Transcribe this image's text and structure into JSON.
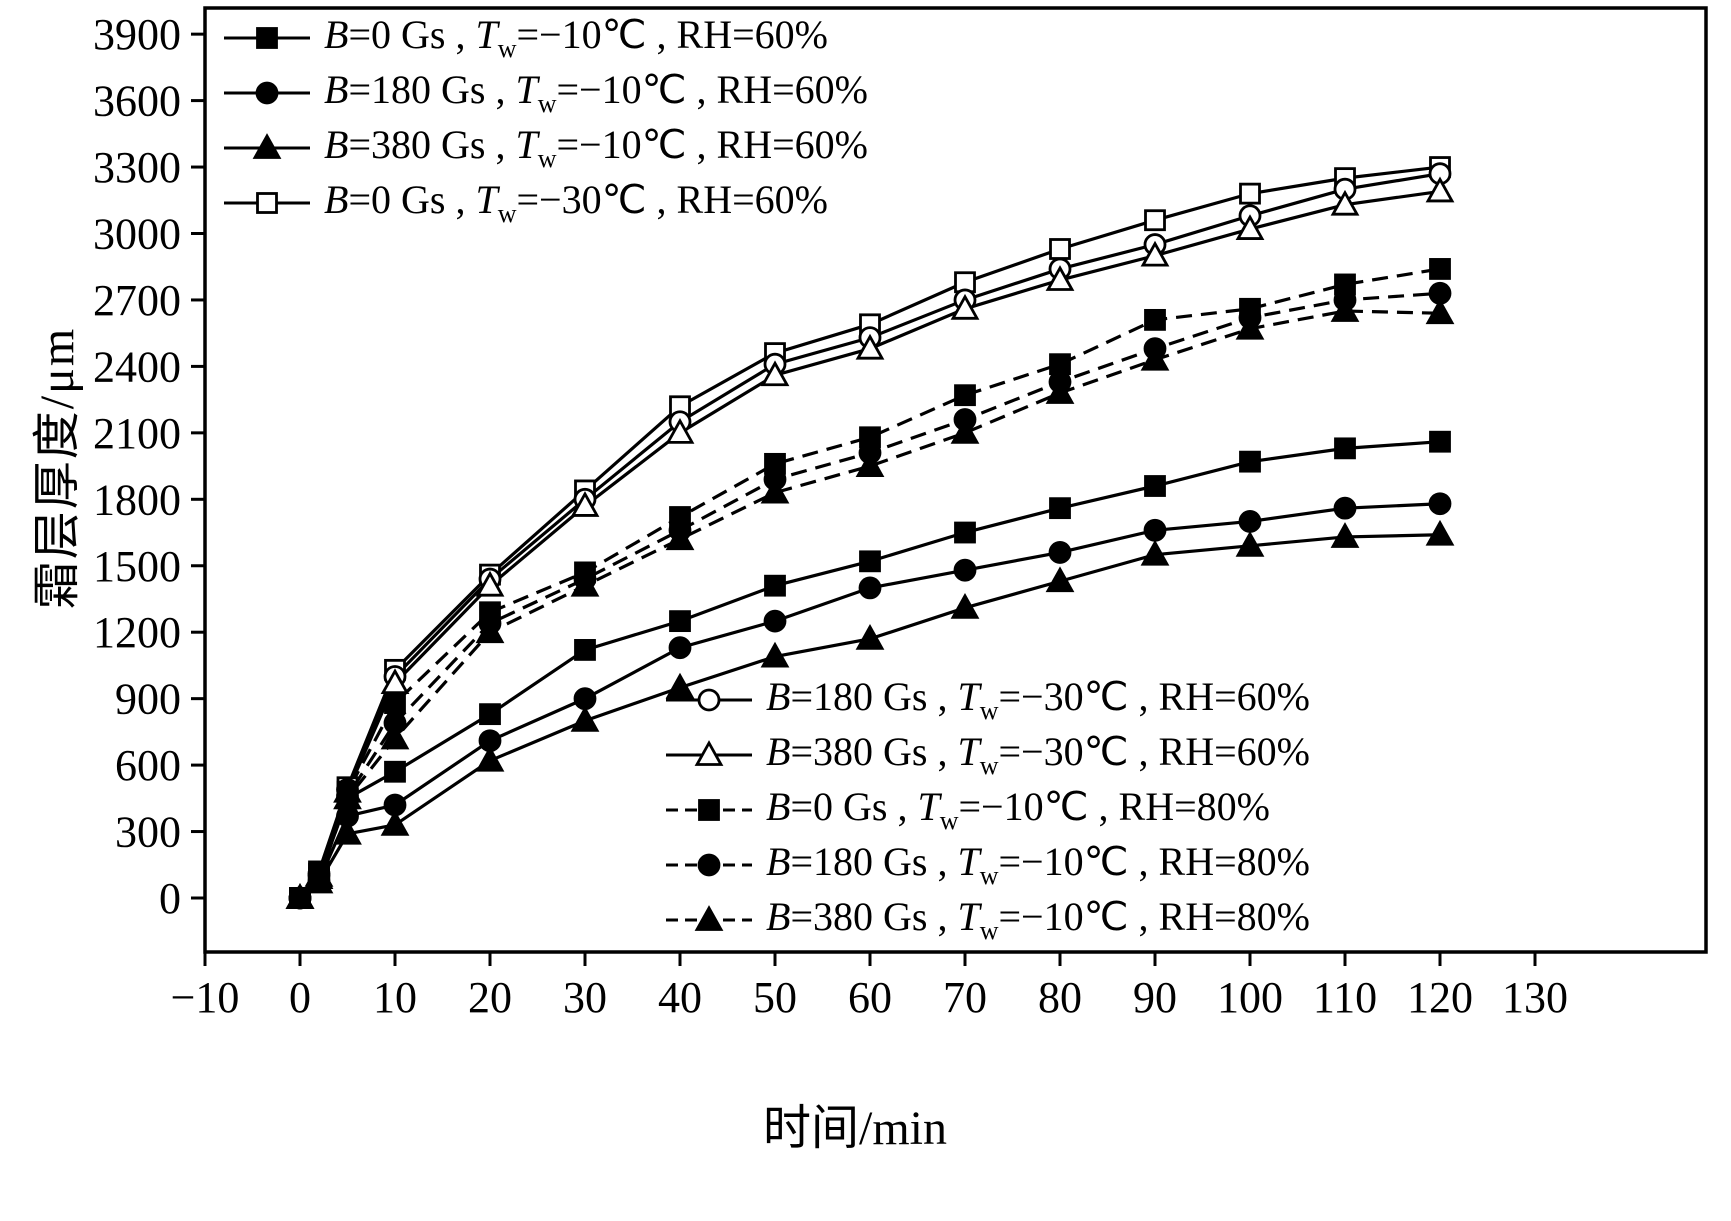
{
  "figure": {
    "background": "#ffffff",
    "axis_color": "#000000",
    "series_color": "#000000"
  },
  "chart_data": {
    "type": "line",
    "title": "",
    "xlabel": "时间/min",
    "ylabel": "霜层厚度/μm",
    "xlim": [
      -10,
      130
    ],
    "ylim": [
      0,
      3900
    ],
    "grid": false,
    "legend_positions": [
      "top-left",
      "bottom-right"
    ],
    "x_ticks": [
      -10,
      0,
      10,
      20,
      30,
      40,
      50,
      60,
      70,
      80,
      90,
      100,
      110,
      120,
      130
    ],
    "y_ticks": [
      0,
      300,
      600,
      900,
      1200,
      1500,
      1800,
      2100,
      2400,
      2700,
      3000,
      3300,
      3600,
      3900
    ],
    "x": [
      0,
      2,
      5,
      10,
      20,
      30,
      40,
      50,
      60,
      70,
      80,
      90,
      100,
      110,
      120
    ],
    "series": [
      {
        "name": "B=0 Gs , Tw=−10℃ , RH=60%",
        "legend": {
          "b": "0",
          "tw": "−10",
          "rh": "60"
        },
        "marker": "square",
        "fill": "filled",
        "line": "solid",
        "values": [
          0,
          90,
          450,
          570,
          830,
          1120,
          1250,
          1410,
          1520,
          1650,
          1760,
          1860,
          1970,
          2030,
          2060
        ]
      },
      {
        "name": "B=180 Gs , Tw=−10℃ , RH=60%",
        "legend": {
          "b": "180",
          "tw": "−10",
          "rh": "60"
        },
        "marker": "circle",
        "fill": "filled",
        "line": "solid",
        "values": [
          0,
          80,
          370,
          420,
          710,
          900,
          1130,
          1250,
          1400,
          1480,
          1560,
          1660,
          1700,
          1760,
          1780
        ]
      },
      {
        "name": "B=380 Gs , Tw=−10℃ , RH=60%",
        "legend": {
          "b": "380",
          "tw": "−10",
          "rh": "60"
        },
        "marker": "triangle",
        "fill": "filled",
        "line": "solid",
        "values": [
          0,
          70,
          290,
          330,
          620,
          800,
          950,
          1090,
          1170,
          1310,
          1430,
          1550,
          1590,
          1630,
          1640
        ]
      },
      {
        "name": "B=0 Gs , Tw=−30℃ , RH=60%",
        "legend": {
          "b": "0",
          "tw": "−30",
          "rh": "60"
        },
        "marker": "square",
        "fill": "open",
        "line": "solid",
        "values": [
          0,
          120,
          500,
          1030,
          1460,
          1840,
          2220,
          2460,
          2590,
          2780,
          2930,
          3060,
          3180,
          3250,
          3300
        ]
      },
      {
        "name": "B=180 Gs , Tw=−30℃ , RH=60%",
        "legend": {
          "b": "180",
          "tw": "−30",
          "rh": "60"
        },
        "marker": "circle",
        "fill": "open",
        "line": "solid",
        "values": [
          0,
          110,
          490,
          1000,
          1440,
          1800,
          2150,
          2410,
          2530,
          2700,
          2840,
          2950,
          3080,
          3200,
          3270
        ]
      },
      {
        "name": "B=380 Gs , Tw=−30℃ , RH=60%",
        "legend": {
          "b": "380",
          "tw": "−30",
          "rh": "60"
        },
        "marker": "triangle",
        "fill": "open",
        "line": "solid",
        "values": [
          0,
          100,
          480,
          970,
          1410,
          1770,
          2100,
          2360,
          2480,
          2660,
          2790,
          2900,
          3020,
          3130,
          3190
        ]
      },
      {
        "name": "B=0 Gs , Tw=−10℃ , RH=80%",
        "legend": {
          "b": "0",
          "tw": "−10",
          "rh": "80"
        },
        "marker": "square",
        "fill": "filled",
        "line": "dashed",
        "values": [
          0,
          110,
          480,
          880,
          1290,
          1470,
          1720,
          1960,
          2080,
          2270,
          2410,
          2610,
          2660,
          2770,
          2840
        ]
      },
      {
        "name": "B=180 Gs , Tw=−10℃ , RH=80%",
        "legend": {
          "b": "180",
          "tw": "−10",
          "rh": "80"
        },
        "marker": "circle",
        "fill": "filled",
        "line": "dashed",
        "values": [
          0,
          100,
          460,
          790,
          1240,
          1440,
          1660,
          1890,
          2010,
          2160,
          2330,
          2480,
          2620,
          2700,
          2730
        ]
      },
      {
        "name": "B=380 Gs , Tw=−10℃ , RH=80%",
        "legend": {
          "b": "380",
          "tw": "−10",
          "rh": "80"
        },
        "marker": "triangle",
        "fill": "filled",
        "line": "dashed",
        "values": [
          0,
          90,
          450,
          720,
          1200,
          1410,
          1620,
          1830,
          1950,
          2100,
          2280,
          2430,
          2570,
          2650,
          2640
        ]
      }
    ],
    "legend_top_indices": [
      0,
      1,
      2,
      3
    ],
    "legend_bottom_indices": [
      4,
      5,
      6,
      7,
      8
    ],
    "legend_format": {
      "b_symbol": "B",
      "t_symbol": "T",
      "t_subscript": "w",
      "equals": "=",
      "gauss_unit": " Gs",
      "separator": " , ",
      "degree": "℃",
      "rh_label": "RH",
      "percent": "%"
    }
  }
}
